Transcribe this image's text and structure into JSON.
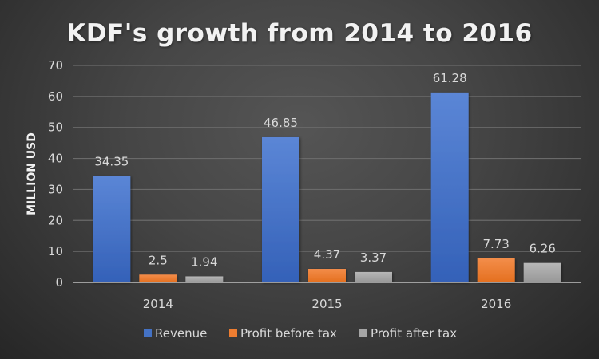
{
  "chart_data": {
    "type": "bar",
    "title": "KDF's growth from 2014 to 2016",
    "xlabel": "",
    "ylabel": "MILLION USD",
    "ylim": [
      0,
      70
    ],
    "yticks": [
      0,
      10,
      20,
      30,
      40,
      50,
      60,
      70
    ],
    "grid": true,
    "legend_position": "bottom",
    "categories": [
      "2014",
      "2015",
      "2016"
    ],
    "series": [
      {
        "name": "Revenue",
        "color": "#4472C4",
        "values": [
          34.35,
          46.85,
          61.28
        ],
        "labels": [
          "34.35",
          "46.85",
          "61.28"
        ]
      },
      {
        "name": "Profit before tax",
        "color": "#ED7D31",
        "values": [
          2.5,
          4.37,
          7.73
        ],
        "labels": [
          "2.5",
          "4.37",
          "7.73"
        ]
      },
      {
        "name": "Profit after tax",
        "color": "#A5A5A5",
        "values": [
          1.94,
          3.37,
          6.26
        ],
        "labels": [
          "1.94",
          "3.37",
          "6.26"
        ]
      }
    ]
  }
}
